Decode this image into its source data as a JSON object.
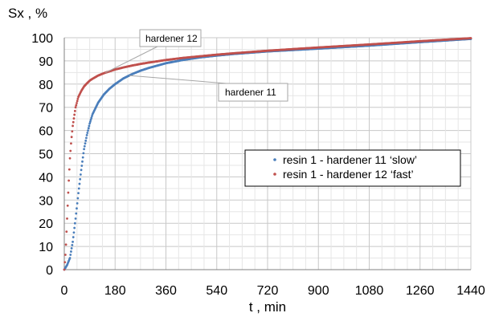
{
  "chart_data": {
    "type": "line",
    "xlabel": "t , min",
    "ylabel": "Sx , %",
    "xlim": [
      0,
      1440
    ],
    "ylim": [
      0,
      100
    ],
    "xticks": [
      "0",
      "180",
      "360",
      "540",
      "720",
      "900",
      "1080",
      "1260",
      "1440"
    ],
    "yticks": [
      "0",
      "10",
      "20",
      "30",
      "40",
      "50",
      "60",
      "70",
      "80",
      "90",
      "100"
    ],
    "grid": true,
    "legend_position": "center-right",
    "series": [
      {
        "name": "resin 1 - hardener 11 ‘slow’",
        "color": "#4a7ebb",
        "x": [
          0,
          10,
          20,
          30,
          40,
          50,
          60,
          70,
          80,
          90,
          100,
          120,
          140,
          160,
          180,
          210,
          240,
          270,
          300,
          360,
          420,
          480,
          540,
          600,
          720,
          900,
          1080,
          1260,
          1440
        ],
        "y": [
          0,
          2,
          5,
          12,
          22,
          33,
          43,
          52,
          58,
          63,
          67,
          72,
          75.5,
          78,
          80,
          82.5,
          84.3,
          85.8,
          87,
          89,
          90.4,
          91.5,
          92.3,
          93,
          94.1,
          95.3,
          96.6,
          98.1,
          99.5
        ]
      },
      {
        "name": "resin 1 - hardener 12 ‘fast’",
        "color": "#c0504d",
        "x": [
          0,
          5,
          10,
          15,
          20,
          25,
          30,
          40,
          50,
          60,
          70,
          80,
          90,
          100,
          120,
          140,
          160,
          180,
          210,
          240,
          270,
          300,
          360,
          420,
          480,
          540,
          600,
          720,
          900,
          1080,
          1260,
          1440
        ],
        "y": [
          0,
          8,
          22,
          36,
          48,
          56,
          62,
          70,
          74.5,
          77,
          79,
          80.3,
          81.5,
          82.3,
          83.7,
          84.7,
          85.5,
          86.3,
          87.2,
          88,
          88.7,
          89.3,
          90.4,
          91.3,
          92,
          92.7,
          93.3,
          94.4,
          95.8,
          97.1,
          98.5,
          99.8
        ]
      }
    ],
    "annotations": [
      {
        "text": "hardener 12",
        "series": 1,
        "x": 145
      },
      {
        "text": "hardener 11",
        "series": 0,
        "x": 230
      }
    ]
  }
}
